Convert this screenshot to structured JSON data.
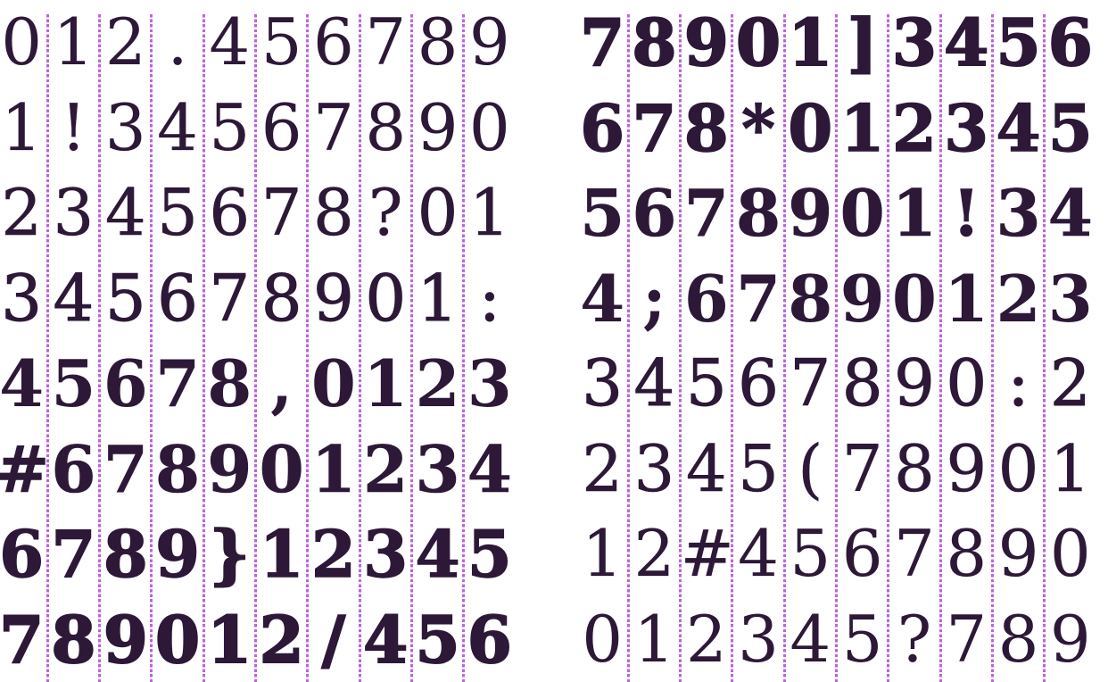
{
  "page": {
    "description": "font-weight specimen grid of digits and punctuation",
    "background_color": "#ffffff",
    "ink_color": "#2d1838",
    "guide_color": "#bb64dd"
  },
  "grid": {
    "columns_per_block": 10,
    "rows_per_block": 8,
    "guide_lines_per_block": 9
  },
  "blocks": [
    {
      "id": "left",
      "rows": [
        {
          "text": "012.456789",
          "weight_level": 1
        },
        {
          "text": "1!34567890",
          "weight_level": 2
        },
        {
          "text": "2345678?01",
          "weight_level": 3
        },
        {
          "text": "345678901:",
          "weight_level": 4
        },
        {
          "text": "45678,0123",
          "weight_level": 5
        },
        {
          "text": "#678901234",
          "weight_level": 6
        },
        {
          "text": "6789}12345",
          "weight_level": 7
        },
        {
          "text": "789012/456",
          "weight_level": 8
        }
      ]
    },
    {
      "id": "right",
      "rows": [
        {
          "text": "78901]3456",
          "weight_level": 8
        },
        {
          "text": "678*012345",
          "weight_level": 7
        },
        {
          "text": "5678901!34",
          "weight_level": 6
        },
        {
          "text": "4;67890123",
          "weight_level": 5
        },
        {
          "text": "34567890:2",
          "weight_level": 4
        },
        {
          "text": "2345(78901",
          "weight_level": 3
        },
        {
          "text": "12#4567890",
          "weight_level": 2
        },
        {
          "text": "012345?789",
          "weight_level": 1
        }
      ]
    }
  ]
}
